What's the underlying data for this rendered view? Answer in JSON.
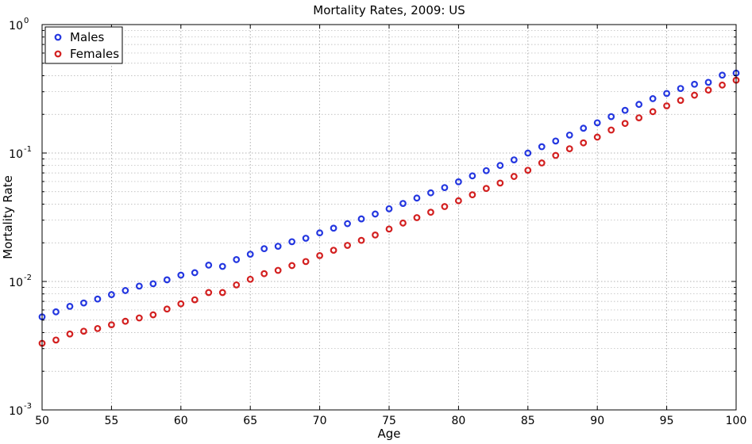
{
  "chart_data": {
    "type": "scatter",
    "title": "Mortality Rates, 2009: US",
    "xlabel": "Age",
    "ylabel": "Mortality Rate",
    "xlim": [
      50,
      100
    ],
    "ylim": [
      0.001,
      1
    ],
    "yscale": "log",
    "grid": true,
    "legend_position": "top-left",
    "xticks": [
      "50",
      "55",
      "60",
      "65",
      "70",
      "75",
      "80",
      "85",
      "90",
      "95",
      "100"
    ],
    "yticks": [
      {
        "base": "10",
        "exp": "-3"
      },
      {
        "base": "10",
        "exp": "-2"
      },
      {
        "base": "10",
        "exp": "-1"
      },
      {
        "base": "10",
        "exp": "0"
      }
    ],
    "x": [
      50,
      51,
      52,
      53,
      54,
      55,
      56,
      57,
      58,
      59,
      60,
      61,
      62,
      63,
      64,
      65,
      66,
      67,
      68,
      69,
      70,
      71,
      72,
      73,
      74,
      75,
      76,
      77,
      78,
      79,
      80,
      81,
      82,
      83,
      84,
      85,
      86,
      87,
      88,
      89,
      90,
      91,
      92,
      93,
      94,
      95,
      96,
      97,
      98,
      99,
      100
    ],
    "series": [
      {
        "name": "Males",
        "color": "#2437e0",
        "values": [
          0.0053,
          0.0058,
          0.0064,
          0.0068,
          0.0073,
          0.0079,
          0.0085,
          0.0092,
          0.0096,
          0.0103,
          0.0112,
          0.0117,
          0.0134,
          0.0131,
          0.0148,
          0.0163,
          0.018,
          0.0188,
          0.0204,
          0.0217,
          0.0239,
          0.026,
          0.0282,
          0.0307,
          0.0335,
          0.0368,
          0.0405,
          0.0446,
          0.049,
          0.0538,
          0.0597,
          0.0664,
          0.0729,
          0.08,
          0.0885,
          0.0999,
          0.112,
          0.124,
          0.138,
          0.156,
          0.172,
          0.192,
          0.215,
          0.239,
          0.265,
          0.291,
          0.318,
          0.343,
          0.355,
          0.404,
          0.419
        ]
      },
      {
        "name": "Females",
        "color": "#d32020",
        "values": [
          0.0033,
          0.0035,
          0.0039,
          0.0041,
          0.0043,
          0.0046,
          0.0049,
          0.0052,
          0.0055,
          0.0061,
          0.0067,
          0.0072,
          0.0082,
          0.0082,
          0.0094,
          0.0104,
          0.0115,
          0.0122,
          0.0133,
          0.0143,
          0.0159,
          0.0175,
          0.0191,
          0.0209,
          0.023,
          0.0256,
          0.0285,
          0.0314,
          0.0346,
          0.0383,
          0.0425,
          0.0473,
          0.053,
          0.0584,
          0.0657,
          0.0734,
          0.0837,
          0.0958,
          0.108,
          0.12,
          0.133,
          0.151,
          0.17,
          0.188,
          0.21,
          0.233,
          0.257,
          0.282,
          0.309,
          0.338,
          0.369
        ]
      }
    ]
  }
}
